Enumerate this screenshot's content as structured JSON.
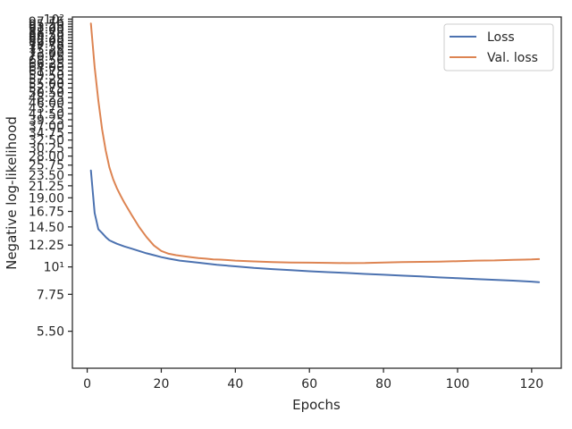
{
  "chart_data": {
    "type": "line",
    "xlabel": "Epochs",
    "ylabel": "Negative log-likelihood",
    "xlim": [
      -4,
      128
    ],
    "ylim": [
      3.9,
      102
    ],
    "yscale": "log",
    "grid": false,
    "legend_position": "top-right",
    "x_ticks": [
      0,
      20,
      40,
      60,
      80,
      100,
      120
    ],
    "x_tick_labels": [
      "0",
      "20",
      "40",
      "60",
      "80",
      "100",
      "120"
    ],
    "y_ticks": [
      5.5,
      7.75,
      10,
      12.25,
      14.5,
      16.75,
      19,
      21.25,
      23.5,
      25.75,
      28,
      30.25,
      32.5,
      34.75,
      37,
      39.25,
      41.5,
      43.75,
      46,
      48.25,
      50.5,
      52.75,
      55,
      57.25,
      59.5,
      61.75,
      64,
      66.25,
      68.5,
      70.75,
      73,
      75.25,
      77.5,
      79.75,
      82,
      84.25,
      86.5,
      88.75,
      91,
      93.25,
      95.5,
      97.75,
      100
    ],
    "y_tick_labels": [
      "5.50",
      "7.75",
      "10¹",
      "12.25",
      "14.50",
      "16.75",
      "19.00",
      "21.25",
      "23.50",
      "25.75",
      "28.00",
      "30.25",
      "32.50",
      "34.75",
      "37.00",
      "39.25",
      "41.50",
      "43.75",
      "46.00",
      "48.25",
      "50.50",
      "52.75",
      "55.00",
      "57.25",
      "59.50",
      "61.75",
      "64.00",
      "66.25",
      "68.50",
      "70.75",
      "73.00",
      "75.25",
      "77.50",
      "79.75",
      "82.00",
      "84.25",
      "86.50",
      "88.75",
      "91.00",
      "93.25",
      "95.50",
      "97.75",
      "10²"
    ],
    "series": [
      {
        "name": "Loss",
        "color": "#4c72b0",
        "x": [
          1,
          2,
          3,
          4,
          5,
          6,
          8,
          10,
          12,
          14,
          16,
          18,
          20,
          22,
          25,
          30,
          35,
          40,
          45,
          50,
          55,
          60,
          65,
          70,
          75,
          80,
          85,
          90,
          95,
          100,
          105,
          110,
          115,
          120,
          122
        ],
        "y": [
          24.5,
          16.5,
          14.2,
          13.7,
          13.2,
          12.8,
          12.4,
          12.1,
          11.85,
          11.6,
          11.35,
          11.15,
          10.95,
          10.8,
          10.6,
          10.4,
          10.2,
          10.05,
          9.9,
          9.8,
          9.7,
          9.6,
          9.52,
          9.45,
          9.37,
          9.3,
          9.22,
          9.15,
          9.07,
          9.0,
          8.93,
          8.87,
          8.8,
          8.72,
          8.68
        ]
      },
      {
        "name": "Val. loss",
        "color": "#dd8452",
        "x": [
          1,
          2,
          3,
          4,
          5,
          6,
          7,
          8,
          9,
          10,
          12,
          14,
          16,
          18,
          20,
          22,
          24,
          26,
          28,
          30,
          32,
          34,
          36,
          38,
          40,
          45,
          50,
          55,
          60,
          65,
          70,
          75,
          80,
          85,
          90,
          95,
          100,
          105,
          110,
          115,
          118,
          120,
          122
        ],
        "y": [
          96,
          64,
          47,
          36,
          29.5,
          25.2,
          22.6,
          20.8,
          19.4,
          18.2,
          16.2,
          14.5,
          13.2,
          12.2,
          11.6,
          11.3,
          11.15,
          11.05,
          10.95,
          10.85,
          10.8,
          10.72,
          10.7,
          10.65,
          10.6,
          10.52,
          10.45,
          10.42,
          10.4,
          10.38,
          10.36,
          10.37,
          10.42,
          10.45,
          10.48,
          10.5,
          10.55,
          10.6,
          10.62,
          10.68,
          10.7,
          10.72,
          10.75
        ]
      }
    ]
  }
}
